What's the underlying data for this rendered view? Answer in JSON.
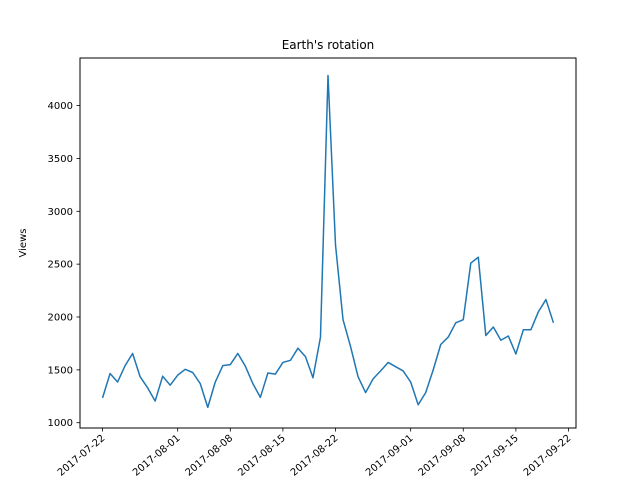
{
  "chart_data": {
    "type": "line",
    "title": "Earth's rotation",
    "xlabel": "",
    "ylabel": "Views",
    "ylim": [
      950,
      4450
    ],
    "xlim": [
      "2017-07-19",
      "2017-09-23"
    ],
    "x_ticks": [
      "2017-07-22",
      "2017-08-01",
      "2017-08-08",
      "2017-08-15",
      "2017-08-22",
      "2017-09-01",
      "2017-09-08",
      "2017-09-15",
      "2017-09-22"
    ],
    "x_tick_labels": [
      "2017-07-22",
      "2017-08-01",
      "2017-08-08",
      "2017-08-15",
      "2017-08-22",
      "2017-09-01",
      "2017-09-08",
      "2017-09-15",
      "2017-09-22"
    ],
    "y_ticks": [
      1000,
      1500,
      2000,
      2500,
      3000,
      3500,
      4000
    ],
    "y_tick_labels": [
      "1000",
      "1500",
      "2000",
      "2500",
      "3000",
      "3500",
      "4000"
    ],
    "grid": false,
    "line_color": "#1f77b4",
    "x": [
      "2017-07-22",
      "2017-07-23",
      "2017-07-24",
      "2017-07-25",
      "2017-07-26",
      "2017-07-27",
      "2017-07-28",
      "2017-07-29",
      "2017-07-30",
      "2017-07-31",
      "2017-08-01",
      "2017-08-02",
      "2017-08-03",
      "2017-08-04",
      "2017-08-05",
      "2017-08-06",
      "2017-08-07",
      "2017-08-08",
      "2017-08-09",
      "2017-08-10",
      "2017-08-11",
      "2017-08-12",
      "2017-08-13",
      "2017-08-14",
      "2017-08-15",
      "2017-08-16",
      "2017-08-17",
      "2017-08-18",
      "2017-08-19",
      "2017-08-20",
      "2017-08-21",
      "2017-08-22",
      "2017-08-23",
      "2017-08-24",
      "2017-08-25",
      "2017-08-26",
      "2017-08-27",
      "2017-08-28",
      "2017-08-29",
      "2017-08-30",
      "2017-08-31",
      "2017-09-01",
      "2017-09-02",
      "2017-09-03",
      "2017-09-04",
      "2017-09-05",
      "2017-09-06",
      "2017-09-07",
      "2017-09-08",
      "2017-09-09",
      "2017-09-10",
      "2017-09-11",
      "2017-09-12",
      "2017-09-13",
      "2017-09-14",
      "2017-09-15",
      "2017-09-16",
      "2017-09-17",
      "2017-09-18",
      "2017-09-19",
      "2017-09-20"
    ],
    "values": [
      1235,
      1465,
      1385,
      1540,
      1655,
      1435,
      1330,
      1205,
      1440,
      1355,
      1450,
      1505,
      1475,
      1370,
      1145,
      1385,
      1540,
      1550,
      1655,
      1535,
      1370,
      1240,
      1470,
      1460,
      1570,
      1590,
      1705,
      1625,
      1425,
      1810,
      4285,
      2680,
      1975,
      1720,
      1435,
      1285,
      1415,
      1490,
      1570,
      1530,
      1490,
      1385,
      1170,
      1285,
      1500,
      1740,
      1810,
      1945,
      1975,
      2510,
      2565,
      1825,
      1905,
      1780,
      1820,
      1650,
      1880,
      1880,
      2050,
      2165,
      1945
    ]
  }
}
